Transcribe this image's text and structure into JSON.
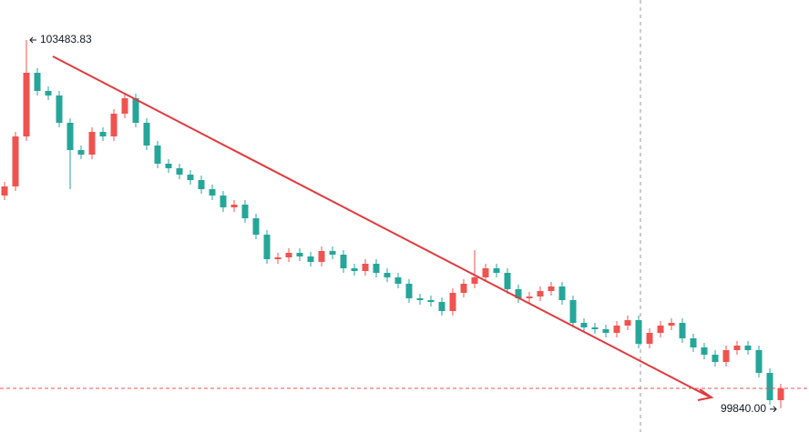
{
  "chart_data": {
    "type": "candlestick",
    "up_color": "#ef5350",
    "down_color": "#26a69a",
    "ylim": [
      99605,
      103880
    ],
    "open": [
      101945,
      102035,
      102530,
      103160,
      102980,
      102935,
      102665,
      102395,
      102350,
      102575,
      102530,
      102755,
      102908,
      102665,
      102440,
      102260,
      102215,
      102152,
      102098,
      102008,
      101945,
      101828,
      101855,
      101720,
      101558,
      101315,
      101333,
      101378,
      101342,
      101288,
      101396,
      101360,
      101225,
      101198,
      101270,
      101180,
      101135,
      101072,
      100928,
      100910,
      100892,
      100802,
      100982,
      101072,
      101135,
      101225,
      101180,
      101018,
      100928,
      100946,
      101000,
      101045,
      100910,
      100685,
      100640,
      100622,
      100586,
      100658,
      100712,
      100478,
      100586,
      100658,
      100685,
      100532,
      100442,
      100370,
      100298,
      100415,
      100460,
      100415,
      100190,
      99920
    ],
    "high": [
      102080,
      102575,
      103483.83,
      103205,
      103025,
      102980,
      102710,
      102440,
      102620,
      102620,
      102800,
      102953,
      102953,
      102710,
      102485,
      102305,
      102260,
      102197,
      102143,
      102053,
      101990,
      101900,
      101900,
      101765,
      101603,
      101378,
      101423,
      101423,
      101387,
      101441,
      101441,
      101405,
      101270,
      101315,
      101315,
      101225,
      101180,
      101117,
      100973,
      100955,
      100937,
      101027,
      101117,
      101405,
      101270,
      101270,
      101225,
      101063,
      100991,
      101045,
      101090,
      101090,
      100955,
      100730,
      100685,
      100667,
      100703,
      100757,
      100757,
      100631,
      100703,
      100730,
      100730,
      100577,
      100487,
      100415,
      100460,
      100505,
      100505,
      100460,
      100235,
      100082
    ],
    "low": [
      101900,
      101990,
      102485,
      102935,
      102890,
      102620,
      102008,
      102305,
      102305,
      102485,
      102485,
      102710,
      102620,
      102395,
      102215,
      102170,
      102107,
      102053,
      101963,
      101900,
      101783,
      101783,
      101675,
      101513,
      101270,
      101270,
      101288,
      101297,
      101243,
      101243,
      101315,
      101180,
      101153,
      101153,
      101135,
      101090,
      101027,
      100883,
      100865,
      100847,
      100757,
      100757,
      100937,
      101027,
      101090,
      101135,
      100973,
      100883,
      100883,
      100901,
      100955,
      100865,
      100640,
      100595,
      100577,
      100541,
      100541,
      100613,
      100433,
      100433,
      100541,
      100613,
      100487,
      100397,
      100325,
      100253,
      100253,
      100370,
      100370,
      100145,
      99875,
      99840
    ],
    "close": [
      102035,
      102530,
      103160,
      102980,
      102935,
      102665,
      102395,
      102350,
      102575,
      102530,
      102755,
      102908,
      102665,
      102440,
      102260,
      102215,
      102152,
      102098,
      102008,
      101945,
      101828,
      101855,
      101720,
      101558,
      101315,
      101333,
      101378,
      101342,
      101288,
      101396,
      101360,
      101225,
      101198,
      101270,
      101180,
      101135,
      101072,
      100928,
      100910,
      100892,
      100802,
      100982,
      101072,
      101135,
      101225,
      101180,
      101018,
      100928,
      100946,
      101000,
      101045,
      100910,
      100685,
      100640,
      100622,
      100586,
      100658,
      100712,
      100478,
      100586,
      100658,
      100685,
      100532,
      100442,
      100370,
      100298,
      100415,
      100460,
      100415,
      100190,
      99920,
      100037
    ],
    "max_label": {
      "value": 103483.83,
      "label": "103483.83"
    },
    "min_label": {
      "value": 99840,
      "label": "99840.00"
    }
  }
}
